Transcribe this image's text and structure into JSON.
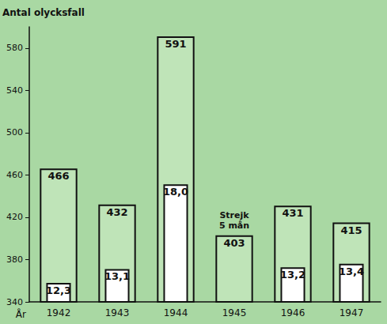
{
  "chart_data": {
    "type": "bar",
    "ylabel": "Antal olycksfall",
    "xlabel": "År",
    "categories": [
      "1942",
      "1943",
      "1944",
      "1945",
      "1946",
      "1947"
    ],
    "series": [
      {
        "color": "#bfe4b8",
        "values": [
          466,
          432,
          591,
          403,
          431,
          415
        ]
      },
      {
        "color": "#ffffff",
        "axis": "y2",
        "values": [
          12.3,
          13.1,
          18.0,
          null,
          13.2,
          13.4
        ],
        "value_labels": [
          "12,3",
          "13,1",
          "18,0",
          null,
          "13,2",
          "13,4"
        ]
      }
    ],
    "annotations": [
      {
        "text": "Strejk 5 mån",
        "category": "1945"
      }
    ],
    "ylim": [
      340,
      600
    ],
    "yticks": [
      340,
      380,
      420,
      460,
      500,
      540,
      580
    ],
    "y2lim": [
      11.2,
      27.1
    ],
    "grid": false,
    "data_labels": true
  }
}
